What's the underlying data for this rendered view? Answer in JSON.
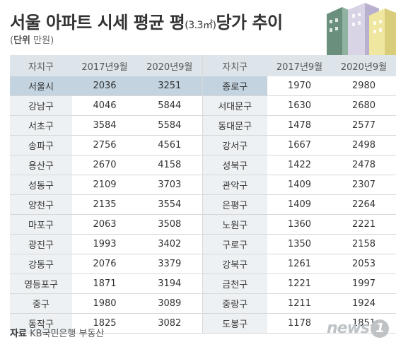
{
  "header": {
    "title_main": "서울 아파트 시세 평균 평",
    "title_unit": "(3.3㎡)",
    "title_end": "당가 추이",
    "unit_label": "단위",
    "unit_value": "만원"
  },
  "table": {
    "col_district": "자치구",
    "col_2017": "2017년9월",
    "col_2020": "2020년9월",
    "left_rows": [
      {
        "district": "서울시",
        "v2017": "2036",
        "v2020": "3251"
      },
      {
        "district": "강남구",
        "v2017": "4046",
        "v2020": "5844"
      },
      {
        "district": "서초구",
        "v2017": "3584",
        "v2020": "5584"
      },
      {
        "district": "송파구",
        "v2017": "2756",
        "v2020": "4561"
      },
      {
        "district": "용산구",
        "v2017": "2670",
        "v2020": "4158"
      },
      {
        "district": "성동구",
        "v2017": "2109",
        "v2020": "3703"
      },
      {
        "district": "양천구",
        "v2017": "2135",
        "v2020": "3554"
      },
      {
        "district": "마포구",
        "v2017": "2063",
        "v2020": "3508"
      },
      {
        "district": "광진구",
        "v2017": "1993",
        "v2020": "3402"
      },
      {
        "district": "강동구",
        "v2017": "2076",
        "v2020": "3379"
      },
      {
        "district": "영등포구",
        "v2017": "1871",
        "v2020": "3194"
      },
      {
        "district": "중구",
        "v2017": "1980",
        "v2020": "3089"
      },
      {
        "district": "동작구",
        "v2017": "1825",
        "v2020": "3082"
      }
    ],
    "right_rows": [
      {
        "district": "종로구",
        "v2017": "1970",
        "v2020": "2980"
      },
      {
        "district": "서대문구",
        "v2017": "1630",
        "v2020": "2680"
      },
      {
        "district": "동대문구",
        "v2017": "1478",
        "v2020": "2577"
      },
      {
        "district": "강서구",
        "v2017": "1667",
        "v2020": "2498"
      },
      {
        "district": "성북구",
        "v2017": "1422",
        "v2020": "2478"
      },
      {
        "district": "관악구",
        "v2017": "1409",
        "v2020": "2307"
      },
      {
        "district": "은평구",
        "v2017": "1409",
        "v2020": "2264"
      },
      {
        "district": "노원구",
        "v2017": "1360",
        "v2020": "2221"
      },
      {
        "district": "구로구",
        "v2017": "1350",
        "v2020": "2158"
      },
      {
        "district": "강북구",
        "v2017": "1261",
        "v2020": "2053"
      },
      {
        "district": "금천구",
        "v2017": "1221",
        "v2020": "1997"
      },
      {
        "district": "중랑구",
        "v2017": "1211",
        "v2020": "1924"
      },
      {
        "district": "도봉구",
        "v2017": "1178",
        "v2020": "1851"
      }
    ]
  },
  "footer": {
    "source_label": "자료",
    "source_value": "KB국민은행 부동산",
    "logo_text": "news",
    "logo_num": "1"
  },
  "colors": {
    "header_bg": "#dde5ea",
    "district_bg": "#eef1f3",
    "highlight_bg": "#c3d3e0"
  }
}
